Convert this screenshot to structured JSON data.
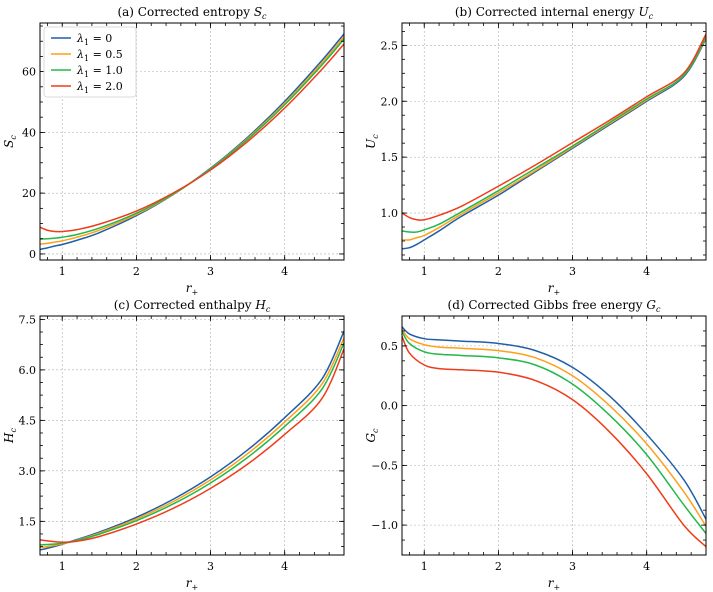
{
  "chart_data": [
    {
      "type": "line",
      "id": "a",
      "title": "(a) Corrected entropy S_c",
      "title_text": "(a) Corrected entropy ",
      "title_sym": "S",
      "title_sub": "c",
      "xlabel_sym": "r",
      "xlabel_sub": "+",
      "ylabel_sym": "S",
      "ylabel_sub": "c",
      "xlim": [
        0.7,
        4.8
      ],
      "ylim": [
        -2,
        76
      ],
      "xticks": [
        1,
        2,
        3,
        4
      ],
      "xtick_labels": [
        "1",
        "2",
        "3",
        "4"
      ],
      "yticks": [
        0,
        20,
        40,
        60
      ],
      "ytick_labels": [
        "0",
        "20",
        "40",
        "60"
      ],
      "grid": true,
      "legend": "top-left",
      "x": [
        0.7,
        0.8,
        0.9,
        1.0,
        1.2,
        1.5,
        2.0,
        2.5,
        3.0,
        3.5,
        4.0,
        4.5,
        4.8
      ],
      "series": [
        {
          "name": "λ1 = 0",
          "legend_sym": "λ",
          "legend_sub": "1",
          "legend_val": " = 0",
          "color": "#1f5fa8",
          "values": [
            1.5,
            2.0,
            2.6,
            3.1,
            4.5,
            7.0,
            12.6,
            19.6,
            28.2,
            38.4,
            50.2,
            63.6,
            72.4
          ]
        },
        {
          "name": "λ1 = 0.5",
          "legend_sym": "λ",
          "legend_sub": "1",
          "legend_val": " = 0.5",
          "color": "#ff9f1a",
          "values": [
            3.2,
            3.5,
            3.9,
            4.3,
            5.5,
            7.8,
            13.0,
            19.7,
            28.0,
            38.0,
            49.6,
            62.8,
            71.5
          ]
        },
        {
          "name": "λ1 = 1.0",
          "legend_sym": "λ",
          "legend_sub": "1",
          "legend_val": " = 1.0",
          "color": "#22b84a",
          "values": [
            4.9,
            5.0,
            5.2,
            5.5,
            6.4,
            8.5,
            13.4,
            19.8,
            27.9,
            37.7,
            49.1,
            62.1,
            70.7
          ]
        },
        {
          "name": "λ1 = 2.0",
          "legend_sym": "λ",
          "legend_sub": "1",
          "legend_val": " = 2.0",
          "color": "#f03c1a",
          "values": [
            8.8,
            7.8,
            7.4,
            7.4,
            8.0,
            9.8,
            14.1,
            20.1,
            27.6,
            37.0,
            48.0,
            60.7,
            69.1
          ]
        }
      ]
    },
    {
      "type": "line",
      "id": "b",
      "title": "(b) Corrected internal energy U_c",
      "title_text": "(b) Corrected internal energy ",
      "title_sym": "U",
      "title_sub": "c",
      "xlabel_sym": "r",
      "xlabel_sub": "+",
      "ylabel_sym": "U",
      "ylabel_sub": "c",
      "xlim": [
        0.7,
        4.8
      ],
      "ylim": [
        0.58,
        2.7
      ],
      "xticks": [
        1,
        2,
        3,
        4
      ],
      "xtick_labels": [
        "1",
        "2",
        "3",
        "4"
      ],
      "yticks": [
        1.0,
        1.5,
        2.0,
        2.5
      ],
      "ytick_labels": [
        "1.0",
        "1.5",
        "2.0",
        "2.5"
      ],
      "grid": true,
      "x": [
        0.7,
        0.8,
        0.9,
        1.0,
        1.2,
        1.5,
        2.0,
        2.5,
        3.0,
        3.5,
        4.0,
        4.5,
        4.8
      ],
      "series": [
        {
          "name": "λ1 = 0",
          "color": "#1f5fa8",
          "values": [
            0.68,
            0.69,
            0.72,
            0.76,
            0.84,
            0.97,
            1.16,
            1.37,
            1.58,
            1.79,
            2.0,
            2.22,
            2.56
          ]
        },
        {
          "name": "λ1 = 0.5",
          "color": "#ff9f1a",
          "values": [
            0.76,
            0.76,
            0.78,
            0.8,
            0.87,
            0.99,
            1.18,
            1.38,
            1.59,
            1.8,
            2.01,
            2.23,
            2.57
          ]
        },
        {
          "name": "λ1 = 1.0",
          "color": "#22b84a",
          "values": [
            0.84,
            0.83,
            0.83,
            0.85,
            0.9,
            1.01,
            1.2,
            1.4,
            1.6,
            1.81,
            2.02,
            2.23,
            2.58
          ]
        },
        {
          "name": "λ1 = 2.0",
          "color": "#f03c1a",
          "values": [
            1.0,
            0.96,
            0.94,
            0.94,
            0.98,
            1.06,
            1.24,
            1.43,
            1.63,
            1.83,
            2.04,
            2.25,
            2.6
          ]
        }
      ]
    },
    {
      "type": "line",
      "id": "c",
      "title": "(c) Corrected enthalpy H_c",
      "title_text": "(c) Corrected enthalpy ",
      "title_sym": "H",
      "title_sub": "c",
      "xlabel_sym": "r",
      "xlabel_sub": "+",
      "ylabel_sym": "H",
      "ylabel_sub": "c",
      "xlim": [
        0.7,
        4.8
      ],
      "ylim": [
        0.5,
        7.6
      ],
      "xticks": [
        1,
        2,
        3,
        4
      ],
      "xtick_labels": [
        "1",
        "2",
        "3",
        "4"
      ],
      "yticks": [
        1.5,
        3.0,
        4.5,
        6.0,
        7.5
      ],
      "ytick_labels": [
        "1.5",
        "3.0",
        "4.5",
        "6.0",
        "7.5"
      ],
      "grid": true,
      "x": [
        0.7,
        0.8,
        1.0,
        1.2,
        1.5,
        2.0,
        2.5,
        3.0,
        3.5,
        4.0,
        4.5,
        4.8
      ],
      "series": [
        {
          "name": "λ1 = 0",
          "color": "#1f5fa8",
          "values": [
            0.65,
            0.7,
            0.82,
            0.96,
            1.18,
            1.62,
            2.16,
            2.82,
            3.62,
            4.58,
            5.72,
            7.15
          ]
        },
        {
          "name": "λ1 = 0.5",
          "color": "#ff9f1a",
          "values": [
            0.72,
            0.75,
            0.83,
            0.94,
            1.15,
            1.57,
            2.09,
            2.73,
            3.51,
            4.45,
            5.57,
            6.95
          ]
        },
        {
          "name": "λ1 = 1.0",
          "color": "#22b84a",
          "values": [
            0.8,
            0.81,
            0.85,
            0.93,
            1.12,
            1.52,
            2.02,
            2.64,
            3.4,
            4.32,
            5.42,
            6.8
          ]
        },
        {
          "name": "λ1 = 2.0",
          "color": "#f03c1a",
          "values": [
            0.95,
            0.92,
            0.88,
            0.91,
            1.05,
            1.42,
            1.89,
            2.48,
            3.2,
            4.08,
            5.14,
            6.62
          ]
        }
      ]
    },
    {
      "type": "line",
      "id": "d",
      "title": "(d) Corrected Gibbs free energy G_c",
      "title_text": "(d) Corrected Gibbs free energy ",
      "title_sym": "G",
      "title_sub": "c",
      "xlabel_sym": "r",
      "xlabel_sub": "+",
      "ylabel_sym": "G",
      "ylabel_sub": "c",
      "xlim": [
        0.7,
        4.8
      ],
      "ylim": [
        -1.25,
        0.75
      ],
      "xticks": [
        1,
        2,
        3,
        4
      ],
      "xtick_labels": [
        "1",
        "2",
        "3",
        "4"
      ],
      "yticks": [
        0.5,
        0.0,
        -0.5,
        -1.0
      ],
      "ytick_labels": [
        "0.5",
        "0.0",
        "−0.5",
        "−1.0"
      ],
      "grid": true,
      "x": [
        0.7,
        0.8,
        1.0,
        1.2,
        1.5,
        2.0,
        2.5,
        3.0,
        3.5,
        4.0,
        4.5,
        4.8
      ],
      "series": [
        {
          "name": "λ1 = 0",
          "color": "#1f5fa8",
          "values": [
            0.66,
            0.6,
            0.56,
            0.55,
            0.54,
            0.52,
            0.46,
            0.32,
            0.08,
            -0.24,
            -0.62,
            -0.95
          ]
        },
        {
          "name": "λ1 = 0.5",
          "color": "#ff9f1a",
          "values": [
            0.64,
            0.56,
            0.51,
            0.49,
            0.48,
            0.46,
            0.4,
            0.25,
            0.0,
            -0.32,
            -0.72,
            -1.01
          ]
        },
        {
          "name": "λ1 = 1.0",
          "color": "#22b84a",
          "values": [
            0.62,
            0.52,
            0.45,
            0.43,
            0.42,
            0.4,
            0.34,
            0.18,
            -0.08,
            -0.41,
            -0.83,
            -1.07
          ]
        },
        {
          "name": "λ1 = 2.0",
          "color": "#f03c1a",
          "values": [
            0.58,
            0.44,
            0.34,
            0.31,
            0.3,
            0.28,
            0.21,
            0.05,
            -0.22,
            -0.57,
            -1.0,
            -1.18
          ]
        }
      ]
    }
  ]
}
